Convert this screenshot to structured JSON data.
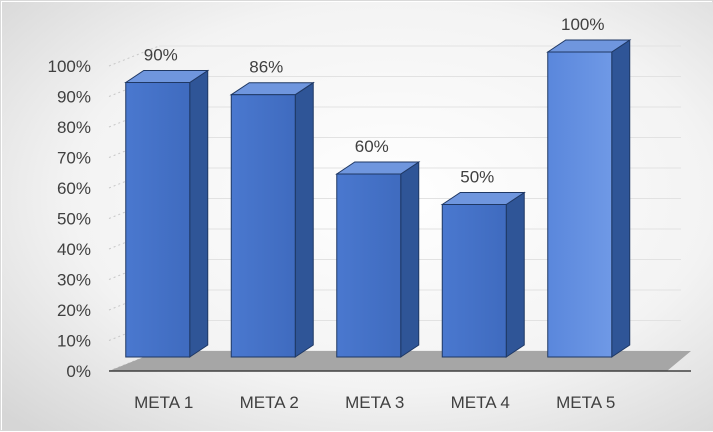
{
  "chart_data": {
    "type": "bar",
    "style": "3d-column",
    "categories": [
      "META 1",
      "META 2",
      "META 3",
      "META 4",
      "META 5"
    ],
    "values": [
      0.9,
      0.86,
      0.6,
      0.5,
      1.0
    ],
    "data_labels": [
      "90%",
      "86%",
      "60%",
      "50%",
      "100%"
    ],
    "y_ticks": [
      "0%",
      "10%",
      "20%",
      "30%",
      "40%",
      "50%",
      "60%",
      "70%",
      "80%",
      "90%",
      "100%"
    ],
    "ylim": [
      0,
      1
    ],
    "grid": true,
    "legend": "none",
    "colors": {
      "bar_front": "#4472c4",
      "bar_side": "#2f5597",
      "bar_top": "#6f96de",
      "bar_edge": "#1f3864",
      "floor": "#a6a6a6",
      "background_center": "#ffffff",
      "background_edge": "#d9d9d9",
      "gridline": "#d0d0d0"
    }
  }
}
